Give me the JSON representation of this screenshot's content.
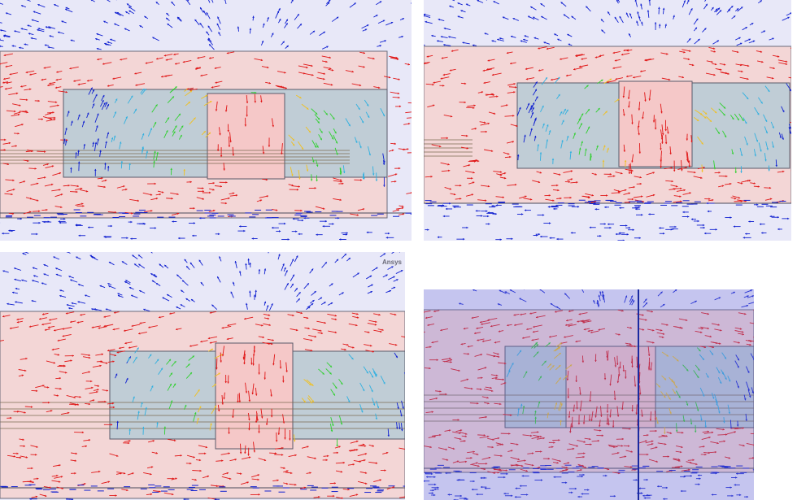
{
  "panels": [
    {
      "id": "p1",
      "name": "simulation-panel-top-left"
    },
    {
      "id": "p2",
      "name": "simulation-panel-top-right"
    },
    {
      "id": "p3",
      "name": "simulation-panel-bottom-left",
      "watermark": "Ansys"
    },
    {
      "id": "p4",
      "name": "simulation-panel-bottom-right"
    }
  ],
  "colors": {
    "background": "#e8e8f8",
    "field_high": "#e01818",
    "field_mid_high": "#f0c020",
    "field_mid": "#30d030",
    "field_mid_low": "#30b0e0",
    "field_low": "#1020d0",
    "core_region": "#c8c8d0",
    "window_region": "#9fc6d6"
  },
  "icons": {
    "field_arrows": "vector-arrow-glyphs"
  }
}
